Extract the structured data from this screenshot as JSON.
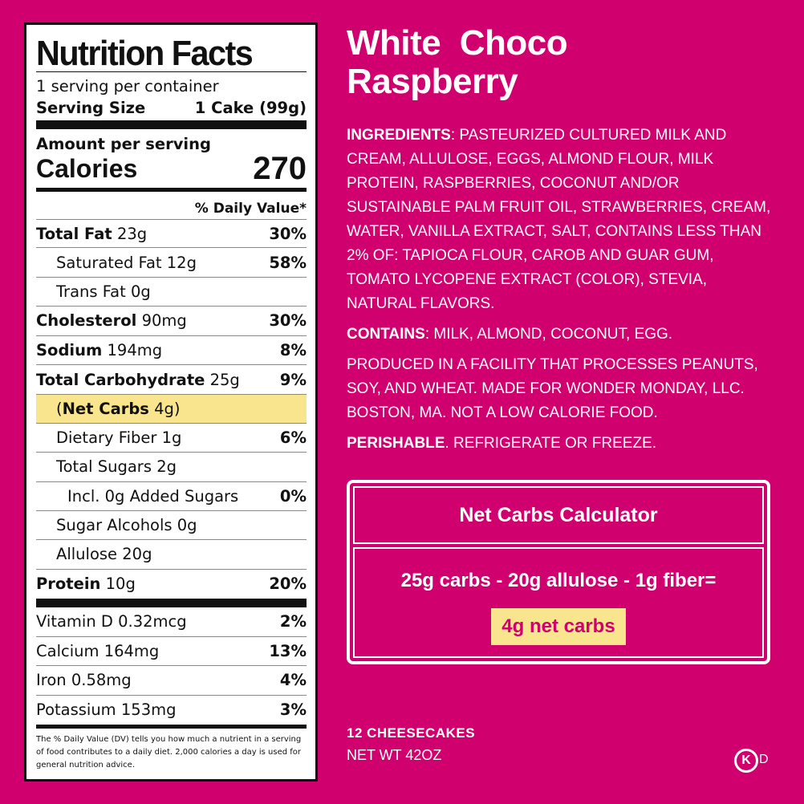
{
  "nutrition": {
    "title": "Nutrition Facts",
    "servings_per_container": "1 serving per container",
    "serving_size_label": "Serving Size",
    "serving_size_value": "1 Cake (99g)",
    "amount_per_serving": "Amount per serving",
    "calories_label": "Calories",
    "calories_value": "270",
    "daily_value_header": "% Daily Value*",
    "rows": [
      {
        "name": "Total Fat",
        "amount": "23g",
        "pct": "30%"
      },
      {
        "name": "Saturated Fat",
        "amount": "12g",
        "pct": "58%"
      },
      {
        "name": "Trans Fat",
        "amount": "0g",
        "pct": ""
      },
      {
        "name": "Cholesterol",
        "amount": "90mg",
        "pct": "30%"
      },
      {
        "name": "Sodium",
        "amount": "194mg",
        "pct": "8%"
      },
      {
        "name": "Total Carbohydrate",
        "amount": "25g",
        "pct": "9%"
      },
      {
        "name": "Net Carbs",
        "amount": "4g",
        "pct": ""
      },
      {
        "name": "Dietary Fiber",
        "amount": "1g",
        "pct": "6%"
      },
      {
        "name": "Total Sugars",
        "amount": "2g",
        "pct": ""
      },
      {
        "name": "Incl. 0g Added Sugars",
        "amount": "",
        "pct": "0%"
      },
      {
        "name": "Sugar Alcohols",
        "amount": "0g",
        "pct": ""
      },
      {
        "name": "Allulose",
        "amount": "20g",
        "pct": ""
      },
      {
        "name": "Protein",
        "amount": "10g",
        "pct": "20%"
      }
    ],
    "vitamins": [
      {
        "name": "Vitamin D",
        "amount": "0.32mcg",
        "pct": "2%"
      },
      {
        "name": "Calcium",
        "amount": "164mg",
        "pct": "13%"
      },
      {
        "name": "Iron",
        "amount": "0.58mg",
        "pct": "4%"
      },
      {
        "name": "Potassium",
        "amount": "153mg",
        "pct": "3%"
      }
    ],
    "footnote": "The % Daily Value (DV) tells you how much a nutrient in a serving of food contributes to a daily diet. 2,000 calories a day is used for general nutrition advice."
  },
  "product": {
    "name_line1": "White  Choco",
    "name_line2": "Raspberry"
  },
  "ingredients": {
    "label": "INGREDIENTS",
    "text": ": PASTEURIZED CULTURED MILK AND CREAM, ALLULOSE, EGGS, ALMOND FLOUR, MILK PROTEIN, RASPBERRIES, COCONUT AND/OR SUSTAINABLE PALM FRUIT OIL, STRAWBERRIES, CREAM, WATER, VANILLA EXTRACT, SALT, CONTAINS LESS THAN 2% OF: TAPIOCA FLOUR, CAROB AND GUAR GUM, TOMATO LYCOPENE EXTRACT (COLOR), STEVIA, NATURAL FLAVORS."
  },
  "contains": {
    "label": "CONTAINS",
    "text": ": MILK, ALMOND, COCONUT, EGG."
  },
  "facility": "PRODUCED IN A FACILITY THAT PROCESSES PEANUTS, SOY, AND WHEAT. MADE FOR WONDER MONDAY, LLC. BOSTON, MA. NOT A LOW CALORIE FOOD.",
  "perishable": {
    "label": "PERISHABLE",
    "text": ". REFRIGERATE OR FREEZE."
  },
  "calculator": {
    "title": "Net Carbs Calculator",
    "equation": "25g carbs - 20g allulose - 1g fiber=",
    "result": "4g net carbs"
  },
  "package": {
    "count": "12 CHEESECAKES",
    "net_weight": "NET WT 42OZ"
  },
  "kosher": {
    "symbol": "K",
    "suffix": "D"
  },
  "colors": {
    "background": "#d1006f",
    "highlight": "#f8e58d",
    "panel": "#ffffff",
    "ink": "#111111"
  }
}
